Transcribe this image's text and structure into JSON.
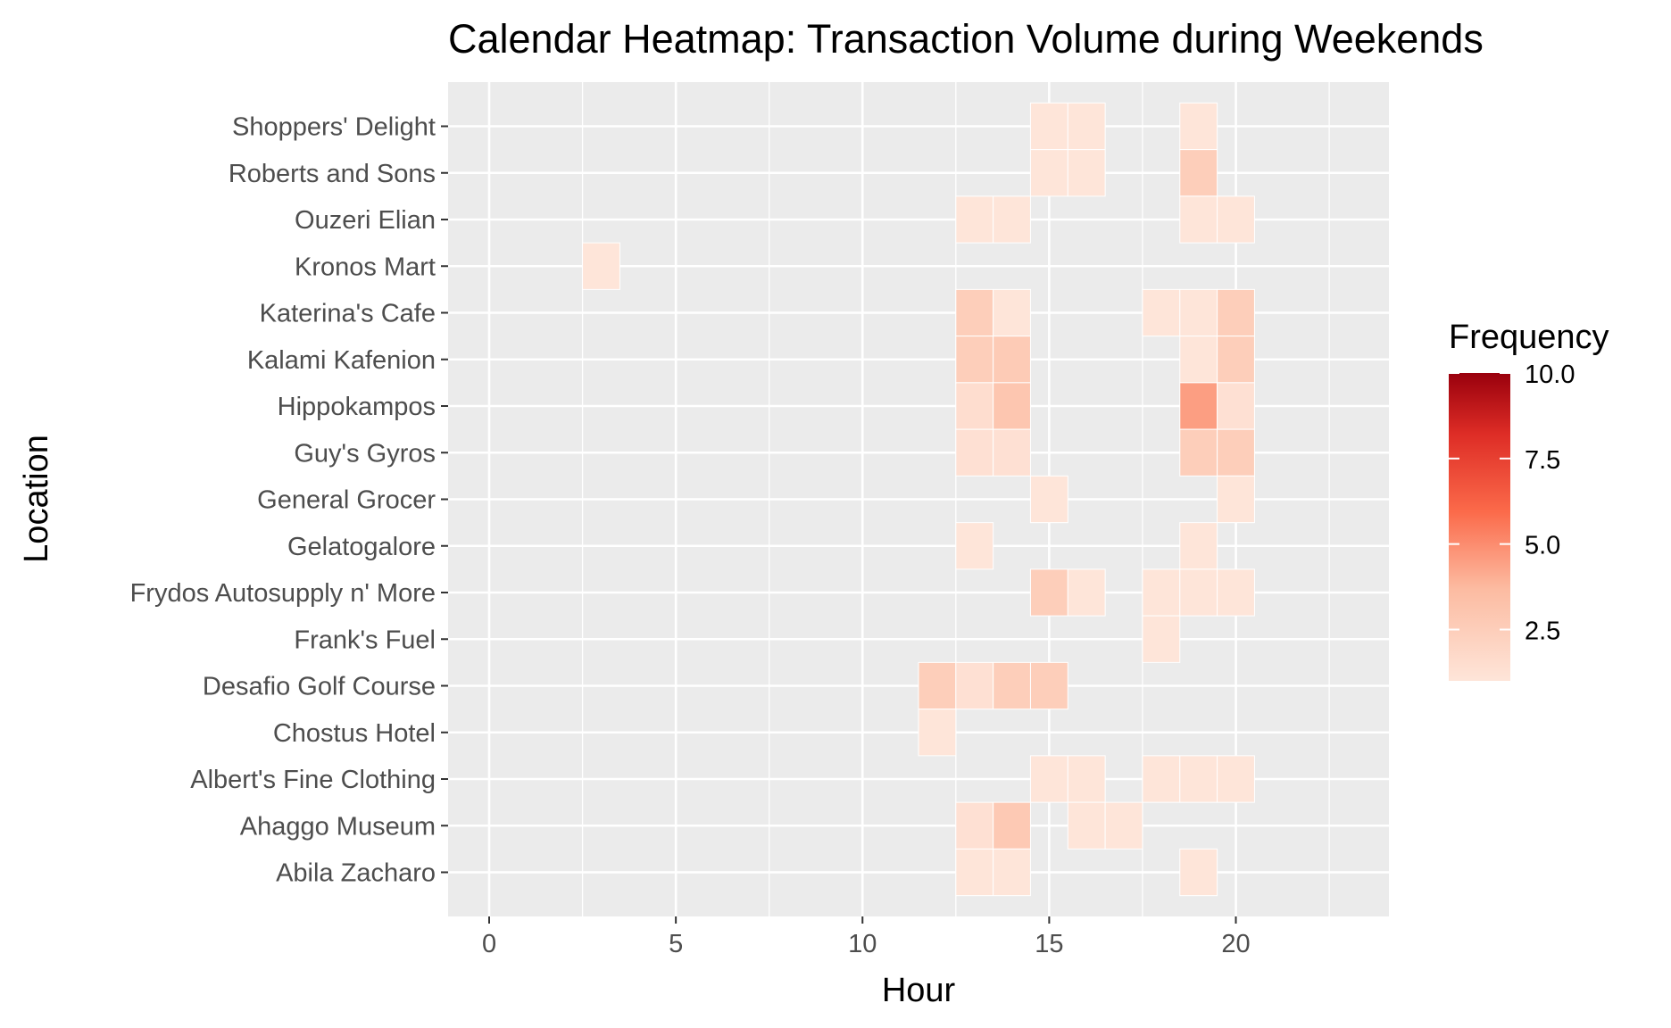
{
  "chart_data": {
    "type": "heatmap",
    "title": "Calendar Heatmap: Transaction Volume during Weekends",
    "xlabel": "Hour",
    "ylabel": "Location",
    "xlim": [
      -1.1,
      24.1
    ],
    "x_ticks": [
      "0",
      "5",
      "10",
      "15",
      "20"
    ],
    "x_tick_values": [
      0,
      5,
      10,
      15,
      20
    ],
    "locations": [
      "Shoppers' Delight",
      "Roberts and Sons",
      "Ouzeri Elian",
      "Kronos Mart",
      "Katerina's Cafe",
      "Kalami Kafenion",
      "Hippokampos",
      "Guy's Gyros",
      "General Grocer",
      "Gelatogalore",
      "Frydos Autosupply n' More",
      "Frank's Fuel",
      "Desafio Golf Course",
      "Chostus Hotel",
      "Albert's Fine Clothing",
      "Ahaggo Museum",
      "Abila Zacharo"
    ],
    "cells": [
      {
        "location": "Shoppers' Delight",
        "hour": 15,
        "value": 1
      },
      {
        "location": "Shoppers' Delight",
        "hour": 16,
        "value": 1
      },
      {
        "location": "Shoppers' Delight",
        "hour": 19,
        "value": 1
      },
      {
        "location": "Roberts and Sons",
        "hour": 15,
        "value": 1
      },
      {
        "location": "Roberts and Sons",
        "hour": 16,
        "value": 1
      },
      {
        "location": "Roberts and Sons",
        "hour": 19,
        "value": 2.5
      },
      {
        "location": "Ouzeri Elian",
        "hour": 13,
        "value": 1
      },
      {
        "location": "Ouzeri Elian",
        "hour": 14,
        "value": 1
      },
      {
        "location": "Ouzeri Elian",
        "hour": 19,
        "value": 1
      },
      {
        "location": "Ouzeri Elian",
        "hour": 20,
        "value": 1
      },
      {
        "location": "Kronos Mart",
        "hour": 3,
        "value": 1
      },
      {
        "location": "Katerina's Cafe",
        "hour": 13,
        "value": 2.5
      },
      {
        "location": "Katerina's Cafe",
        "hour": 14,
        "value": 1
      },
      {
        "location": "Katerina's Cafe",
        "hour": 18,
        "value": 1
      },
      {
        "location": "Katerina's Cafe",
        "hour": 19,
        "value": 1
      },
      {
        "location": "Katerina's Cafe",
        "hour": 20,
        "value": 2.5
      },
      {
        "location": "Kalami Kafenion",
        "hour": 13,
        "value": 2.5
      },
      {
        "location": "Kalami Kafenion",
        "hour": 14,
        "value": 2.7
      },
      {
        "location": "Kalami Kafenion",
        "hour": 19,
        "value": 1
      },
      {
        "location": "Kalami Kafenion",
        "hour": 20,
        "value": 2.5
      },
      {
        "location": "Hippokampos",
        "hour": 13,
        "value": 1.5
      },
      {
        "location": "Hippokampos",
        "hour": 14,
        "value": 3
      },
      {
        "location": "Hippokampos",
        "hour": 19,
        "value": 4.5
      },
      {
        "location": "Hippokampos",
        "hour": 20,
        "value": 1.3
      },
      {
        "location": "Guy's Gyros",
        "hour": 13,
        "value": 1.3
      },
      {
        "location": "Guy's Gyros",
        "hour": 14,
        "value": 1.3
      },
      {
        "location": "Guy's Gyros",
        "hour": 19,
        "value": 2.5
      },
      {
        "location": "Guy's Gyros",
        "hour": 20,
        "value": 2.5
      },
      {
        "location": "General Grocer",
        "hour": 15,
        "value": 1
      },
      {
        "location": "General Grocer",
        "hour": 20,
        "value": 1
      },
      {
        "location": "Gelatogalore",
        "hour": 13,
        "value": 1
      },
      {
        "location": "Gelatogalore",
        "hour": 19,
        "value": 1
      },
      {
        "location": "Frydos Autosupply n' More",
        "hour": 15,
        "value": 2.5
      },
      {
        "location": "Frydos Autosupply n' More",
        "hour": 16,
        "value": 1
      },
      {
        "location": "Frydos Autosupply n' More",
        "hour": 18,
        "value": 1
      },
      {
        "location": "Frydos Autosupply n' More",
        "hour": 19,
        "value": 1
      },
      {
        "location": "Frydos Autosupply n' More",
        "hour": 20,
        "value": 1
      },
      {
        "location": "Frank's Fuel",
        "hour": 18,
        "value": 1
      },
      {
        "location": "Desafio Golf Course",
        "hour": 12,
        "value": 2.5
      },
      {
        "location": "Desafio Golf Course",
        "hour": 13,
        "value": 1.3
      },
      {
        "location": "Desafio Golf Course",
        "hour": 14,
        "value": 2.5
      },
      {
        "location": "Desafio Golf Course",
        "hour": 15,
        "value": 2.5
      },
      {
        "location": "Chostus Hotel",
        "hour": 12,
        "value": 1
      },
      {
        "location": "Albert's Fine Clothing",
        "hour": 15,
        "value": 1
      },
      {
        "location": "Albert's Fine Clothing",
        "hour": 16,
        "value": 1
      },
      {
        "location": "Albert's Fine Clothing",
        "hour": 18,
        "value": 1
      },
      {
        "location": "Albert's Fine Clothing",
        "hour": 19,
        "value": 1
      },
      {
        "location": "Albert's Fine Clothing",
        "hour": 20,
        "value": 1
      },
      {
        "location": "Ahaggo Museum",
        "hour": 13,
        "value": 1.3
      },
      {
        "location": "Ahaggo Museum",
        "hour": 14,
        "value": 2.8
      },
      {
        "location": "Ahaggo Museum",
        "hour": 16,
        "value": 1
      },
      {
        "location": "Ahaggo Museum",
        "hour": 17,
        "value": 1
      },
      {
        "location": "Abila Zacharo",
        "hour": 13,
        "value": 1
      },
      {
        "location": "Abila Zacharo",
        "hour": 14,
        "value": 1
      },
      {
        "location": "Abila Zacharo",
        "hour": 19,
        "value": 1
      }
    ],
    "legend": {
      "title": "Frequency",
      "placement": "right",
      "range": [
        1,
        10
      ],
      "breaks": [
        "10.0",
        "7.5",
        "5.0",
        "2.5"
      ],
      "break_values": [
        10,
        7.5,
        5,
        2.5
      ],
      "color_low": "#fee5d9",
      "color_high": "#99000d"
    },
    "panel_background": "#ebebeb",
    "grid": true
  }
}
